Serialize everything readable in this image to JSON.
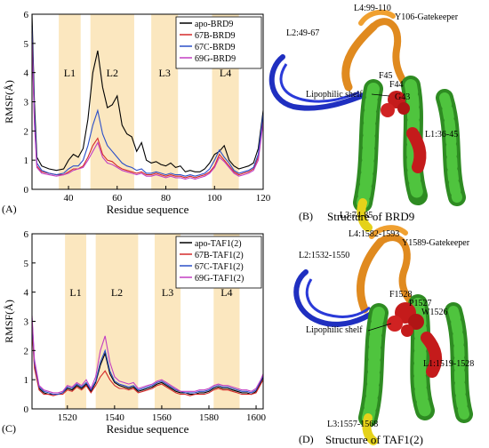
{
  "chart_data": [
    {
      "type": "line",
      "panel_label": "(A)",
      "xlabel": "Residue sequence",
      "ylabel": "RMSF(Å)",
      "xlim": [
        25,
        120
      ],
      "ylim": [
        0,
        6
      ],
      "xticks": [
        40,
        60,
        80,
        100,
        120
      ],
      "yticks": [
        0,
        1,
        2,
        3,
        4,
        5,
        6
      ],
      "legend_position": "top-right",
      "regions": [
        {
          "label": "L1",
          "range": [
            36,
            45
          ]
        },
        {
          "label": "L2",
          "range": [
            49,
            67
          ]
        },
        {
          "label": "L3",
          "range": [
            74,
            85
          ]
        },
        {
          "label": "L4",
          "range": [
            99,
            110
          ]
        }
      ],
      "series": [
        {
          "name": "apo-BRD9",
          "color": "#000000",
          "x": [
            25,
            26,
            27,
            29,
            32,
            35,
            38,
            40,
            42,
            44,
            46,
            48,
            50,
            52,
            54,
            56,
            58,
            60,
            62,
            64,
            66,
            68,
            70,
            72,
            74,
            76,
            78,
            80,
            82,
            84,
            86,
            88,
            90,
            92,
            94,
            96,
            98,
            100,
            102,
            104,
            106,
            108,
            110,
            112,
            114,
            116,
            118,
            120
          ],
          "y": [
            6.0,
            3.0,
            1.1,
            0.8,
            0.7,
            0.65,
            0.7,
            1.0,
            1.2,
            1.1,
            1.4,
            2.4,
            4.0,
            4.75,
            3.5,
            2.8,
            2.9,
            3.2,
            2.2,
            1.9,
            1.8,
            1.3,
            1.6,
            1.0,
            0.9,
            0.95,
            0.85,
            0.8,
            0.9,
            0.75,
            0.8,
            0.6,
            0.65,
            0.6,
            0.6,
            0.7,
            0.9,
            1.2,
            1.3,
            1.5,
            1.0,
            0.8,
            0.7,
            0.75,
            0.8,
            0.9,
            1.4,
            2.7
          ]
        },
        {
          "name": "67B-BRD9",
          "color": "#d42a2a",
          "x": [
            25,
            26,
            27,
            29,
            32,
            35,
            38,
            40,
            42,
            44,
            46,
            48,
            50,
            52,
            54,
            56,
            58,
            60,
            62,
            64,
            66,
            68,
            70,
            72,
            74,
            76,
            78,
            80,
            82,
            84,
            86,
            88,
            90,
            92,
            94,
            96,
            98,
            100,
            102,
            104,
            106,
            108,
            110,
            112,
            114,
            116,
            118,
            120
          ],
          "y": [
            5.4,
            2.4,
            0.8,
            0.6,
            0.55,
            0.5,
            0.5,
            0.6,
            0.7,
            0.7,
            0.8,
            1.1,
            1.5,
            1.75,
            1.2,
            1.0,
            0.95,
            0.8,
            0.7,
            0.65,
            0.6,
            0.55,
            0.6,
            0.5,
            0.5,
            0.55,
            0.5,
            0.45,
            0.5,
            0.45,
            0.45,
            0.4,
            0.45,
            0.4,
            0.45,
            0.5,
            0.6,
            0.8,
            1.2,
            1.0,
            0.8,
            0.6,
            0.5,
            0.55,
            0.6,
            0.7,
            1.1,
            2.4
          ]
        },
        {
          "name": "67C-BRD9",
          "color": "#2b4fc9",
          "x": [
            25,
            26,
            27,
            29,
            32,
            35,
            38,
            40,
            42,
            44,
            46,
            48,
            50,
            52,
            54,
            56,
            58,
            60,
            62,
            64,
            66,
            68,
            70,
            72,
            74,
            76,
            78,
            80,
            82,
            84,
            86,
            88,
            90,
            92,
            94,
            96,
            98,
            100,
            102,
            104,
            106,
            108,
            110,
            112,
            114,
            116,
            118,
            120
          ],
          "y": [
            5.6,
            2.6,
            0.9,
            0.65,
            0.55,
            0.5,
            0.55,
            0.7,
            0.8,
            0.8,
            1.0,
            1.5,
            2.2,
            2.7,
            1.9,
            1.5,
            1.3,
            1.1,
            0.9,
            0.8,
            0.75,
            0.65,
            0.7,
            0.55,
            0.55,
            0.6,
            0.55,
            0.5,
            0.55,
            0.5,
            0.5,
            0.45,
            0.5,
            0.45,
            0.5,
            0.55,
            0.7,
            1.0,
            1.35,
            1.1,
            0.9,
            0.65,
            0.55,
            0.6,
            0.65,
            0.75,
            1.2,
            2.6
          ]
        },
        {
          "name": "69G-BRD9",
          "color": "#c23ec2",
          "x": [
            25,
            26,
            27,
            29,
            32,
            35,
            38,
            40,
            42,
            44,
            46,
            48,
            50,
            52,
            54,
            56,
            58,
            60,
            62,
            64,
            66,
            68,
            70,
            72,
            74,
            76,
            78,
            80,
            82,
            84,
            86,
            88,
            90,
            92,
            94,
            96,
            98,
            100,
            102,
            104,
            106,
            108,
            110,
            112,
            114,
            116,
            118,
            120
          ],
          "y": [
            5.2,
            2.2,
            0.75,
            0.55,
            0.5,
            0.45,
            0.5,
            0.55,
            0.65,
            0.7,
            0.75,
            1.0,
            1.3,
            1.6,
            1.1,
            0.9,
            0.85,
            0.75,
            0.65,
            0.6,
            0.55,
            0.5,
            0.55,
            0.45,
            0.45,
            0.5,
            0.45,
            0.4,
            0.45,
            0.4,
            0.4,
            0.35,
            0.4,
            0.35,
            0.4,
            0.45,
            0.55,
            0.75,
            1.1,
            0.95,
            0.75,
            0.55,
            0.45,
            0.5,
            0.55,
            0.65,
            1.0,
            2.3
          ]
        }
      ]
    },
    {
      "type": "line",
      "panel_label": "(C)",
      "xlabel": "Residue sequence",
      "ylabel": "RMSF(Å)",
      "xlim": [
        1505,
        1603
      ],
      "ylim": [
        0,
        6
      ],
      "xticks": [
        1520,
        1540,
        1560,
        1580,
        1600
      ],
      "yticks": [
        0,
        1,
        2,
        3,
        4,
        5,
        6
      ],
      "legend_position": "top-right",
      "regions": [
        {
          "label": "L1",
          "range": [
            1519,
            1528
          ]
        },
        {
          "label": "L2",
          "range": [
            1532,
            1550
          ]
        },
        {
          "label": "L3",
          "range": [
            1557,
            1568
          ]
        },
        {
          "label": "L4",
          "range": [
            1582,
            1593
          ]
        }
      ],
      "series": [
        {
          "name": "apo-TAF1(2)",
          "color": "#000000",
          "x": [
            1505,
            1506,
            1508,
            1510,
            1512,
            1514,
            1516,
            1518,
            1520,
            1522,
            1524,
            1526,
            1528,
            1530,
            1532,
            1534,
            1536,
            1538,
            1540,
            1542,
            1544,
            1546,
            1548,
            1550,
            1552,
            1554,
            1556,
            1558,
            1560,
            1562,
            1564,
            1566,
            1568,
            1570,
            1572,
            1574,
            1576,
            1578,
            1580,
            1582,
            1584,
            1586,
            1588,
            1590,
            1592,
            1594,
            1596,
            1598,
            1600,
            1602,
            1603
          ],
          "y": [
            3.0,
            1.5,
            0.7,
            0.55,
            0.5,
            0.5,
            0.5,
            0.55,
            0.7,
            0.65,
            0.8,
            0.7,
            0.85,
            0.6,
            0.9,
            1.5,
            1.9,
            1.2,
            0.9,
            0.8,
            0.75,
            0.7,
            0.75,
            0.6,
            0.65,
            0.7,
            0.75,
            0.85,
            0.9,
            0.8,
            0.7,
            0.6,
            0.55,
            0.55,
            0.5,
            0.5,
            0.55,
            0.55,
            0.6,
            0.7,
            0.75,
            0.7,
            0.7,
            0.65,
            0.6,
            0.55,
            0.55,
            0.5,
            0.6,
            0.9,
            1.1
          ]
        },
        {
          "name": "67B-TAF1(2)",
          "color": "#d42a2a",
          "x": [
            1505,
            1506,
            1508,
            1510,
            1512,
            1514,
            1516,
            1518,
            1520,
            1522,
            1524,
            1526,
            1528,
            1530,
            1532,
            1534,
            1536,
            1538,
            1540,
            1542,
            1544,
            1546,
            1548,
            1550,
            1552,
            1554,
            1556,
            1558,
            1560,
            1562,
            1564,
            1566,
            1568,
            1570,
            1572,
            1574,
            1576,
            1578,
            1580,
            1582,
            1584,
            1586,
            1588,
            1590,
            1592,
            1594,
            1596,
            1598,
            1600,
            1602,
            1603
          ],
          "y": [
            2.8,
            1.4,
            0.65,
            0.5,
            0.5,
            0.45,
            0.5,
            0.5,
            0.65,
            0.6,
            0.75,
            0.65,
            0.8,
            0.55,
            0.8,
            1.1,
            1.3,
            1.0,
            0.8,
            0.7,
            0.7,
            0.65,
            0.7,
            0.55,
            0.6,
            0.65,
            0.7,
            0.8,
            0.85,
            0.75,
            0.65,
            0.55,
            0.5,
            0.5,
            0.45,
            0.5,
            0.5,
            0.5,
            0.55,
            0.65,
            0.7,
            0.65,
            0.65,
            0.6,
            0.55,
            0.5,
            0.5,
            0.5,
            0.55,
            0.85,
            1.0
          ]
        },
        {
          "name": "67C-TAF1(2)",
          "color": "#2b4fc9",
          "x": [
            1505,
            1506,
            1508,
            1510,
            1512,
            1514,
            1516,
            1518,
            1520,
            1522,
            1524,
            1526,
            1528,
            1530,
            1532,
            1534,
            1536,
            1538,
            1540,
            1542,
            1544,
            1546,
            1548,
            1550,
            1552,
            1554,
            1556,
            1558,
            1560,
            1562,
            1564,
            1566,
            1568,
            1570,
            1572,
            1574,
            1576,
            1578,
            1580,
            1582,
            1584,
            1586,
            1588,
            1590,
            1592,
            1594,
            1596,
            1598,
            1600,
            1602,
            1603
          ],
          "y": [
            3.1,
            1.6,
            0.75,
            0.6,
            0.55,
            0.5,
            0.5,
            0.55,
            0.75,
            0.7,
            0.85,
            0.75,
            0.9,
            0.65,
            0.95,
            1.6,
            2.0,
            1.3,
            0.95,
            0.85,
            0.8,
            0.75,
            0.8,
            0.65,
            0.7,
            0.75,
            0.8,
            0.9,
            0.95,
            0.85,
            0.75,
            0.65,
            0.6,
            0.55,
            0.55,
            0.55,
            0.6,
            0.6,
            0.65,
            0.75,
            0.8,
            0.75,
            0.75,
            0.7,
            0.65,
            0.6,
            0.6,
            0.55,
            0.65,
            0.95,
            1.15
          ]
        },
        {
          "name": "69G-TAF1(2)",
          "color": "#c23ec2",
          "x": [
            1505,
            1506,
            1508,
            1510,
            1512,
            1514,
            1516,
            1518,
            1520,
            1522,
            1524,
            1526,
            1528,
            1530,
            1532,
            1534,
            1536,
            1538,
            1540,
            1542,
            1544,
            1546,
            1548,
            1550,
            1552,
            1554,
            1556,
            1558,
            1560,
            1562,
            1564,
            1566,
            1568,
            1570,
            1572,
            1574,
            1576,
            1578,
            1580,
            1582,
            1584,
            1586,
            1588,
            1590,
            1592,
            1594,
            1596,
            1598,
            1600,
            1602,
            1603
          ],
          "y": [
            3.2,
            1.7,
            0.8,
            0.65,
            0.6,
            0.55,
            0.55,
            0.6,
            0.8,
            0.75,
            0.9,
            0.8,
            1.0,
            0.7,
            1.1,
            2.0,
            2.5,
            1.6,
            1.1,
            0.95,
            0.9,
            0.85,
            0.9,
            0.7,
            0.75,
            0.8,
            0.85,
            0.95,
            1.0,
            0.9,
            0.8,
            0.7,
            0.6,
            0.6,
            0.6,
            0.6,
            0.65,
            0.65,
            0.7,
            0.8,
            0.85,
            0.8,
            0.8,
            0.75,
            0.7,
            0.65,
            0.65,
            0.6,
            0.7,
            1.0,
            1.2
          ]
        }
      ]
    }
  ],
  "structures": [
    {
      "panel_label": "(B)",
      "caption": "Structure of BRD9",
      "labels": [
        "L4:99-110",
        "Y106-Gatekeeper",
        "L2:49-67",
        "F45",
        "F44",
        "Lipophilic shelf",
        "G43",
        "L1:36-45",
        "L3:74-85"
      ]
    },
    {
      "panel_label": "(D)",
      "caption": "Structure of TAF1(2)",
      "labels": [
        "L4:1582-1593",
        "Y1589-Gatekeeper",
        "L2:1532-1550",
        "F1528",
        "P1527",
        "W1526",
        "Lipophilic shelf",
        "L1:1519-1528",
        "L3:1557-1568"
      ]
    }
  ]
}
